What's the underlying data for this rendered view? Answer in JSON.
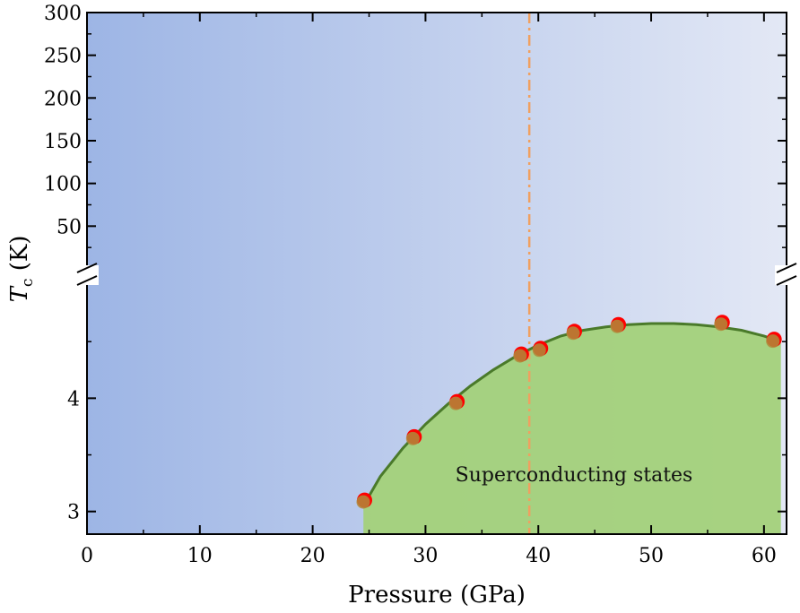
{
  "chart_data": {
    "type": "scatter",
    "xlabel": "Pressure (GPa)",
    "ylabel": {
      "symbol": "T",
      "subscript": "c",
      "unit": " (K)"
    },
    "xlim": [
      0,
      62
    ],
    "x_ticks": [
      0,
      10,
      20,
      30,
      40,
      50,
      60
    ],
    "upper_panel": {
      "ylim": [
        0,
        300
      ],
      "y_ticks": [
        50,
        100,
        150,
        200,
        250,
        300
      ]
    },
    "lower_panel": {
      "ylim": [
        2.8,
        5.0
      ],
      "y_ticks": [
        3,
        4
      ]
    },
    "axis_break": true,
    "series": [
      {
        "marker": "circle",
        "color": "#ff0000",
        "x": [
          24.6,
          29.0,
          32.8,
          38.5,
          40.2,
          43.2,
          47.1,
          56.3,
          60.9
        ],
        "y": [
          3.1,
          3.66,
          3.97,
          4.39,
          4.44,
          4.59,
          4.65,
          4.67,
          4.52
        ]
      }
    ],
    "fit_curve": {
      "color": "#4a7a2a",
      "x": [
        24.5,
        26,
        28,
        30,
        32,
        34,
        36,
        38,
        40,
        42,
        44,
        46,
        48,
        50,
        52,
        54,
        56,
        58,
        60,
        61.5
      ],
      "y": [
        3.05,
        3.31,
        3.56,
        3.77,
        3.95,
        4.11,
        4.25,
        4.37,
        4.47,
        4.55,
        4.6,
        4.63,
        4.65,
        4.66,
        4.66,
        4.65,
        4.63,
        4.6,
        4.55,
        4.5
      ]
    },
    "vertical_line": {
      "x": 39.2,
      "style": "dash-dot",
      "color": "#f0a060"
    },
    "annotation": "Superconducting states",
    "colors": {
      "background_left": "#9db5e5",
      "background_right": "#e3e8f5",
      "region_fill": "#a3d17a",
      "marker": "#ff0000",
      "marker_overlay": "#b08a3a"
    },
    "grid": false
  }
}
